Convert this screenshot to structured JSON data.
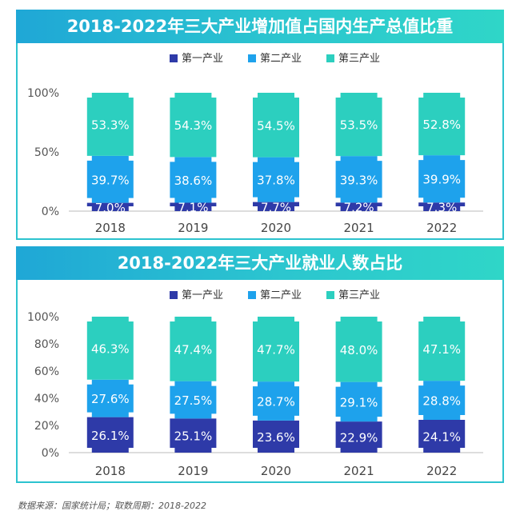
{
  "chart_data": [
    {
      "type": "bar",
      "stacked": true,
      "title": "2018-2022年三大产业增加值占国内生产总值比重",
      "categories": [
        "2018",
        "2019",
        "2020",
        "2021",
        "2022"
      ],
      "series": [
        {
          "name": "第一产业",
          "color": "#2e3aa8",
          "values": [
            7.0,
            7.1,
            7.7,
            7.2,
            7.3
          ],
          "labels": [
            "7.0%",
            "7.1%",
            "7.7%",
            "7.2%",
            "7.3%"
          ]
        },
        {
          "name": "第二产业",
          "color": "#1ea2ec",
          "values": [
            39.7,
            38.6,
            37.8,
            39.3,
            39.9
          ],
          "labels": [
            "39.7%",
            "38.6%",
            "37.8%",
            "39.3%",
            "39.9%"
          ]
        },
        {
          "name": "第三产业",
          "color": "#2ccfbf",
          "values": [
            53.3,
            54.3,
            54.5,
            53.5,
            52.8
          ],
          "labels": [
            "53.3%",
            "54.3%",
            "54.5%",
            "53.5%",
            "52.8%"
          ]
        }
      ],
      "y_ticks": [
        "0%",
        "50%",
        "100%"
      ],
      "ylim": [
        0,
        100
      ],
      "legend_position": "top-center"
    },
    {
      "type": "bar",
      "stacked": true,
      "title": "2018-2022年三大产业就业人数占比",
      "categories": [
        "2018",
        "2019",
        "2020",
        "2021",
        "2022"
      ],
      "series": [
        {
          "name": "第一产业",
          "color": "#2e3aa8",
          "values": [
            26.1,
            25.1,
            23.6,
            22.9,
            24.1
          ],
          "labels": [
            "26.1%",
            "25.1%",
            "23.6%",
            "22.9%",
            "24.1%"
          ]
        },
        {
          "name": "第二产业",
          "color": "#1ea2ec",
          "values": [
            27.6,
            27.5,
            28.7,
            29.1,
            28.8
          ],
          "labels": [
            "27.6%",
            "27.5%",
            "28.7%",
            "29.1%",
            "28.8%"
          ]
        },
        {
          "name": "第三产业",
          "color": "#2ccfbf",
          "values": [
            46.3,
            47.4,
            47.7,
            48.0,
            47.1
          ],
          "labels": [
            "46.3%",
            "47.4%",
            "47.7%",
            "48.0%",
            "47.1%"
          ]
        }
      ],
      "y_ticks": [
        "0%",
        "20%",
        "40%",
        "60%",
        "80%",
        "100%"
      ],
      "ylim": [
        0,
        100
      ],
      "legend_position": "top-center"
    }
  ],
  "source_text": "数据来源：国家统计局；取数周期：2018-2022"
}
